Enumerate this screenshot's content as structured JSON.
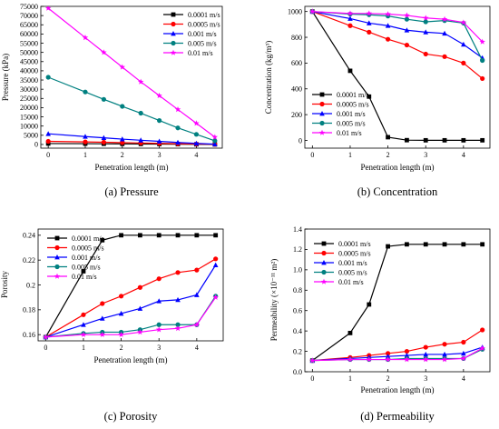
{
  "colors": {
    "0.0001 m/s": "#000000",
    "0.0005 m/s": "#ff0000",
    "0.001 m/s": "#0000ff",
    "0.005 m/s": "#008080",
    "0.01 m/s": "#ff00ff"
  },
  "markers": {
    "0.0001 m/s": "square",
    "0.0005 m/s": "circle",
    "0.001 m/s": "triangle-up",
    "0.005 m/s": "circle",
    "0.01 m/s": "star"
  },
  "chart_data": [
    {
      "type": "line",
      "caption": "(a) Pressure",
      "xlabel": "Penetration length (m)",
      "ylabel": "Pressure (kPa)",
      "xlim": [
        -0.2,
        4.7
      ],
      "ylim": [
        -2000,
        75000
      ],
      "xticks": [
        0,
        1,
        2,
        3,
        4
      ],
      "yticks": [
        0,
        5000,
        10000,
        15000,
        20000,
        25000,
        30000,
        35000,
        40000,
        45000,
        50000,
        55000,
        60000,
        65000,
        70000,
        75000
      ],
      "legend_position": "top-right",
      "x": [
        0,
        1,
        1.5,
        2,
        2.5,
        3,
        3.5,
        4,
        4.5
      ],
      "series": [
        {
          "name": "0.0001 m/s",
          "values": [
            500,
            430,
            380,
            330,
            270,
            210,
            150,
            90,
            30
          ]
        },
        {
          "name": "0.0005 m/s",
          "values": [
            1700,
            1400,
            1200,
            1000,
            800,
            600,
            400,
            250,
            80
          ]
        },
        {
          "name": "0.001 m/s",
          "values": [
            5800,
            4300,
            3600,
            2900,
            2300,
            1700,
            1100,
            600,
            150
          ]
        },
        {
          "name": "0.005 m/s",
          "values": [
            36500,
            28500,
            24500,
            20700,
            17000,
            13000,
            9000,
            5500,
            2000
          ]
        },
        {
          "name": "0.01 m/s",
          "values": [
            74000,
            58000,
            50000,
            42000,
            34000,
            26500,
            19000,
            11500,
            4000
          ]
        }
      ]
    },
    {
      "type": "line",
      "caption": "(b) Concentration",
      "xlabel": "Penetration length (m)",
      "ylabel": "Concentration (kg/m³)",
      "xlim": [
        -0.2,
        4.7
      ],
      "ylim": [
        -60,
        1040
      ],
      "xticks": [
        0,
        1,
        2,
        3,
        4
      ],
      "yticks": [
        0,
        200,
        400,
        600,
        800,
        1000
      ],
      "legend_position": "bottom-left",
      "x": [
        0,
        1,
        1.5,
        2,
        2.5,
        3,
        3.5,
        4,
        4.5
      ],
      "series": [
        {
          "name": "0.0001 m/s",
          "values": [
            1000,
            540,
            340,
            25,
            2,
            1,
            1,
            1,
            1
          ]
        },
        {
          "name": "0.0005 m/s",
          "values": [
            1000,
            890,
            840,
            785,
            740,
            670,
            650,
            600,
            480
          ]
        },
        {
          "name": "0.001 m/s",
          "values": [
            1000,
            945,
            910,
            890,
            855,
            840,
            830,
            745,
            640
          ]
        },
        {
          "name": "0.005 m/s",
          "values": [
            1000,
            980,
            975,
            965,
            940,
            920,
            930,
            910,
            620
          ]
        },
        {
          "name": "0.01 m/s",
          "values": [
            1000,
            985,
            985,
            980,
            970,
            950,
            940,
            915,
            765
          ]
        }
      ]
    },
    {
      "type": "line",
      "caption": "(c) Porosity",
      "xlabel": "Penetration length (m)",
      "ylabel": "Porosity",
      "xlim": [
        -0.2,
        4.7
      ],
      "ylim": [
        0.155,
        0.245
      ],
      "xticks": [
        0,
        1,
        2,
        3,
        4
      ],
      "yticks": [
        0.16,
        0.18,
        0.2,
        0.22,
        0.24
      ],
      "legend_position": "top-left",
      "x": [
        0,
        1,
        1.5,
        2,
        2.5,
        3,
        3.5,
        4,
        4.5
      ],
      "series": [
        {
          "name": "0.0001 m/s",
          "values": [
            0.158,
            0.211,
            0.236,
            0.24,
            0.24,
            0.24,
            0.24,
            0.24,
            0.24
          ]
        },
        {
          "name": "0.0005 m/s",
          "values": [
            0.158,
            0.176,
            0.185,
            0.191,
            0.198,
            0.205,
            0.21,
            0.212,
            0.221
          ]
        },
        {
          "name": "0.001 m/s",
          "values": [
            0.158,
            0.168,
            0.173,
            0.177,
            0.181,
            0.187,
            0.188,
            0.192,
            0.216
          ]
        },
        {
          "name": "0.005 m/s",
          "values": [
            0.158,
            0.161,
            0.162,
            0.162,
            0.164,
            0.168,
            0.168,
            0.168,
            0.191
          ]
        },
        {
          "name": "0.01 m/s",
          "values": [
            0.158,
            0.16,
            0.16,
            0.16,
            0.162,
            0.164,
            0.165,
            0.168,
            0.19
          ]
        }
      ]
    },
    {
      "type": "line",
      "caption": "(d) Permeability",
      "xlabel": "Penetration length (m)",
      "ylabel": "Permeability (×10⁻¹¹ m²)",
      "xlim": [
        -0.2,
        4.7
      ],
      "ylim": [
        0,
        1.4
      ],
      "xticks": [
        0,
        1,
        2,
        3,
        4
      ],
      "yticks": [
        0,
        0.2,
        0.4,
        0.6,
        0.8,
        1.0,
        1.2,
        1.4
      ],
      "ytick_labels": [
        "0.0",
        "0.2",
        "0.4",
        "0.6",
        "0.8",
        "1.0",
        "1.2",
        "1.4"
      ],
      "legend_position": "top-left",
      "x": [
        0,
        1,
        1.5,
        2,
        2.5,
        3,
        3.5,
        4,
        4.5
      ],
      "series": [
        {
          "name": "0.0001 m/s",
          "values": [
            0.11,
            0.38,
            0.66,
            1.23,
            1.25,
            1.25,
            1.25,
            1.25,
            1.25
          ]
        },
        {
          "name": "0.0005 m/s",
          "values": [
            0.11,
            0.14,
            0.16,
            0.18,
            0.2,
            0.24,
            0.27,
            0.29,
            0.41
          ]
        },
        {
          "name": "0.001 m/s",
          "values": [
            0.11,
            0.13,
            0.14,
            0.15,
            0.16,
            0.17,
            0.17,
            0.18,
            0.24
          ]
        },
        {
          "name": "0.005 m/s",
          "values": [
            0.11,
            0.12,
            0.12,
            0.12,
            0.13,
            0.13,
            0.13,
            0.13,
            0.22
          ]
        },
        {
          "name": "0.01 m/s",
          "values": [
            0.11,
            0.12,
            0.12,
            0.12,
            0.12,
            0.12,
            0.12,
            0.13,
            0.23
          ]
        }
      ]
    }
  ]
}
